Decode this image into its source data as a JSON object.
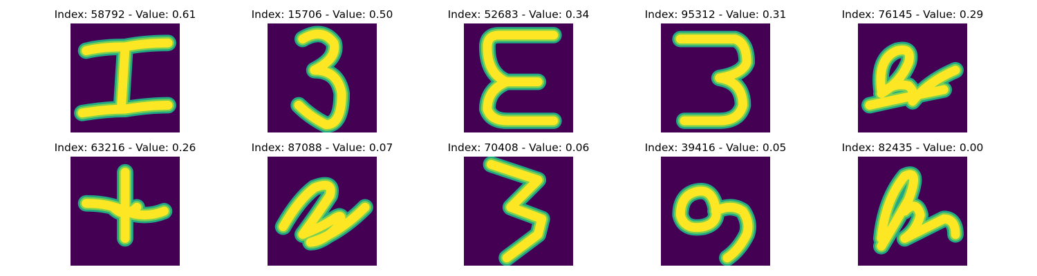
{
  "colors": {
    "background": "#440154",
    "edge": "#22a884",
    "mid": "#7ad151",
    "stroke": "#fde725"
  },
  "panels": [
    {
      "index": "58792",
      "value": "0.61",
      "title": "Index: 58792 - Value: 0.61",
      "glyph": "I-glyph"
    },
    {
      "index": "15706",
      "value": "0.50",
      "title": "Index: 15706 - Value: 0.50",
      "glyph": "3-glyph"
    },
    {
      "index": "52683",
      "value": "0.34",
      "title": "Index: 52683 - Value: 0.34",
      "glyph": "E-glyph"
    },
    {
      "index": "95312",
      "value": "0.31",
      "title": "Index: 95312 - Value: 0.31",
      "glyph": "3-glyph"
    },
    {
      "index": "76145",
      "value": "0.29",
      "title": "Index: 76145 - Value: 0.29",
      "glyph": "2-glyph"
    },
    {
      "index": "63216",
      "value": "0.26",
      "title": "Index: 63216 - Value: 0.26",
      "glyph": "plus-glyph"
    },
    {
      "index": "87088",
      "value": "0.07",
      "title": "Index: 87088 - Value: 0.07",
      "glyph": "2-glyph"
    },
    {
      "index": "70408",
      "value": "0.06",
      "title": "Index: 70408 - Value: 0.06",
      "glyph": "3-glyph"
    },
    {
      "index": "39416",
      "value": "0.05",
      "title": "Index: 39416 - Value: 0.05",
      "glyph": "9-glyph"
    },
    {
      "index": "82435",
      "value": "0.00",
      "title": "Index: 82435 - Value: 0.00",
      "glyph": "2-glyph"
    }
  ]
}
